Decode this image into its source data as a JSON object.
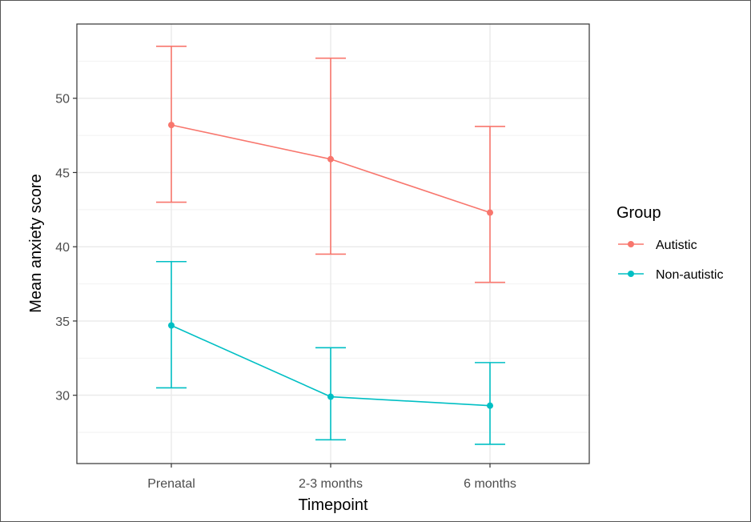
{
  "chart_data": {
    "type": "line",
    "title": "",
    "xlabel": "Timepoint",
    "ylabel": "Mean anxiety score",
    "categories": [
      "Prenatal",
      "2-3 months",
      "6 months"
    ],
    "y_ticks": [
      30,
      35,
      40,
      45,
      50
    ],
    "ylim": [
      25.4,
      55
    ],
    "grid": true,
    "error_bars": true,
    "legend": {
      "title": "Group",
      "position": "right"
    },
    "series": [
      {
        "name": "Autistic",
        "color": "#F8766D",
        "values": [
          48.2,
          45.9,
          42.3
        ],
        "lower": [
          43.0,
          39.5,
          37.6
        ],
        "upper": [
          53.5,
          52.7,
          48.1
        ]
      },
      {
        "name": "Non-autistic",
        "color": "#00BFC4",
        "values": [
          34.7,
          29.9,
          29.3
        ],
        "lower": [
          30.5,
          27.0,
          26.7
        ],
        "upper": [
          39.0,
          33.2,
          32.2
        ]
      }
    ]
  }
}
